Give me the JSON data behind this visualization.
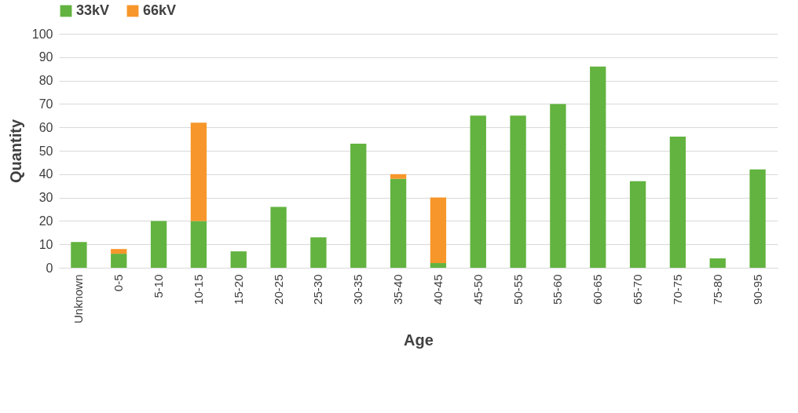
{
  "chart_data": {
    "type": "bar",
    "stacked": true,
    "xlabel": "Age",
    "ylabel": "Quantity",
    "categories": [
      "Unknown",
      "0-5",
      "5-10",
      "10-15",
      "15-20",
      "20-25",
      "25-30",
      "30-35",
      "35-40",
      "40-45",
      "45-50",
      "50-55",
      "55-60",
      "60-65",
      "65-70",
      "70-75",
      "75-80",
      "90-95"
    ],
    "series": [
      {
        "name": "33kV",
        "color": "#62b33f",
        "values": [
          11,
          6,
          20,
          20,
          7,
          26,
          13,
          53,
          38,
          2,
          65,
          65,
          70,
          86,
          37,
          56,
          4,
          42
        ]
      },
      {
        "name": "66kV",
        "color": "#f7962a",
        "values": [
          0,
          2,
          0,
          42,
          0,
          0,
          0,
          0,
          2,
          28,
          0,
          0,
          0,
          0,
          0,
          0,
          0,
          0
        ]
      }
    ],
    "ylim": [
      0,
      100
    ],
    "yticks": [
      0,
      10,
      20,
      30,
      40,
      50,
      60,
      70,
      80,
      90,
      100
    ],
    "grid": "y",
    "legend": "top"
  }
}
